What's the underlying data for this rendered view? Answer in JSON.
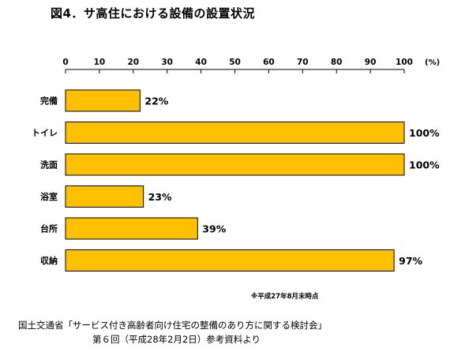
{
  "title": "図4．サ高住における設備の設置状況",
  "note": "※平成27年8月末時点",
  "source_line1": "国土交通省「サービス付き高齢者向け住宅の整備のあり方に関する検討会」",
  "source_line2": "第６回（平成28年2月2日）参考資料より",
  "colors": {
    "bar_fill": "#FFC000",
    "bar_stroke": "#000000"
  },
  "chart_data": {
    "type": "bar",
    "orientation": "horizontal",
    "unit_label": "(%)",
    "xlim": [
      0,
      100
    ],
    "ticks": [
      0,
      10,
      20,
      30,
      40,
      50,
      60,
      70,
      80,
      90,
      100
    ],
    "categories": [
      "完備",
      "トイレ",
      "洗面",
      "浴室",
      "台所",
      "収納"
    ],
    "values": [
      22,
      100,
      100,
      23,
      39,
      97
    ],
    "value_labels": [
      "22%",
      "100%",
      "100%",
      "23%",
      "39%",
      "97%"
    ]
  }
}
